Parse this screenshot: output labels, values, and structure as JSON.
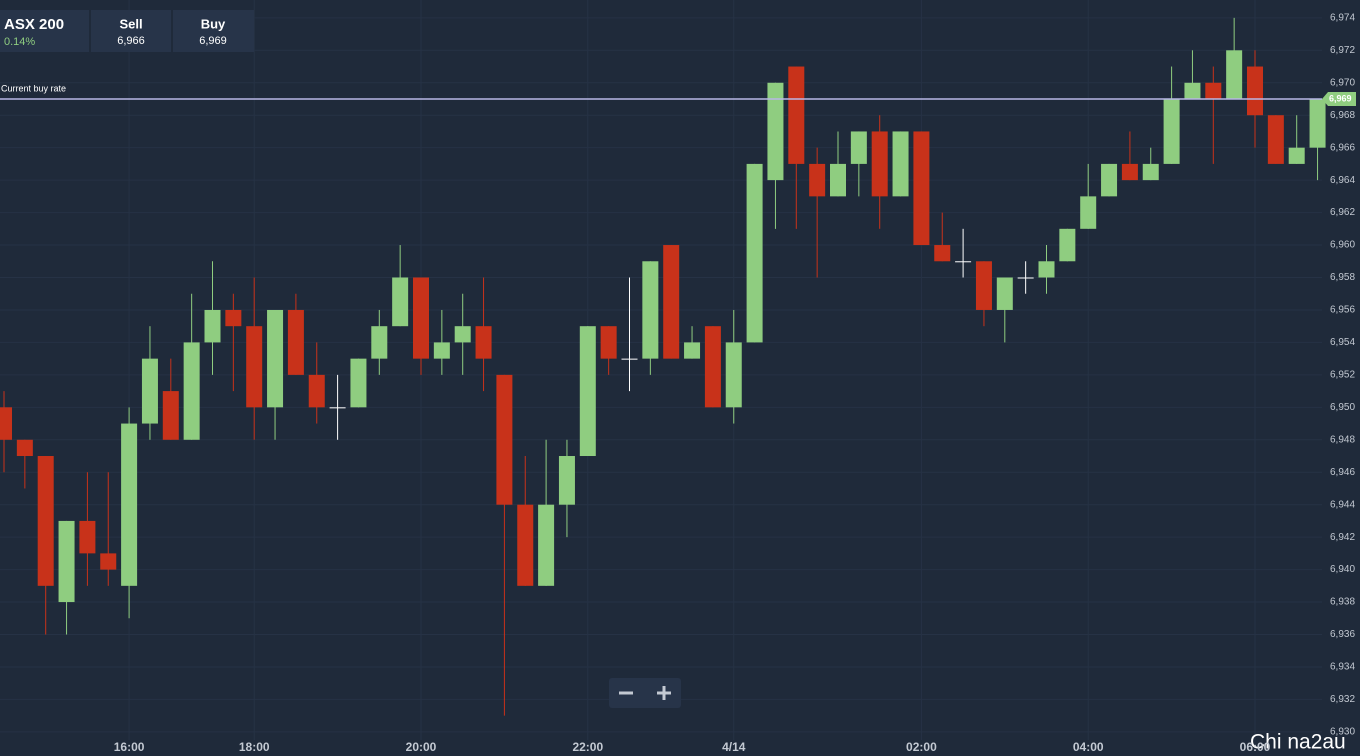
{
  "header": {
    "symbol": "ASX 200",
    "change": "0.14%",
    "sell_label": "Sell",
    "sell": "6,966",
    "buy_label": "Buy",
    "buy": "6,969"
  },
  "watermark": "Chi na2au",
  "chart_data": {
    "type": "candlestick",
    "categories": [
      null,
      null,
      null,
      null,
      null,
      null,
      "16:00",
      null,
      null,
      null,
      null,
      null,
      "18:00",
      null,
      null,
      null,
      null,
      null,
      null,
      null,
      "20:00",
      null,
      null,
      null,
      null,
      null,
      null,
      null,
      "22:00",
      null,
      null,
      null,
      null,
      null,
      null,
      "4/14",
      null,
      null,
      null,
      null,
      null,
      null,
      null,
      null,
      "02:00",
      null,
      null,
      null,
      null,
      null,
      null,
      null,
      "04:00",
      null,
      null,
      null,
      null,
      null,
      null,
      null,
      "06:00",
      null,
      null,
      null
    ],
    "open": [
      6950,
      6948,
      6947,
      6938,
      6943,
      6941,
      6939,
      6949,
      6951,
      6948,
      6954,
      6956,
      6955,
      6950,
      6956,
      6952,
      6950,
      6950,
      6953,
      6955,
      6958,
      6953,
      6954,
      6955,
      6952,
      6944,
      6939,
      6944,
      6947,
      6955,
      6953,
      6953,
      6960,
      6953,
      6955,
      6950,
      6954,
      6964,
      6971,
      6965,
      6963,
      6965,
      6967,
      6963,
      6967,
      6960,
      6959,
      6959,
      6956,
      6958,
      6958,
      6959,
      6961,
      6963,
      6965,
      6964,
      6965,
      6969,
      6970,
      6969,
      6971,
      6968,
      6965,
      6966
    ],
    "high": [
      6951,
      6948,
      6947,
      6943,
      6946,
      6946,
      6950,
      6955,
      6953,
      6957,
      6959,
      6957,
      6958,
      6956,
      6957,
      6954,
      6952,
      6953,
      6956,
      6960,
      6958,
      6956,
      6957,
      6958,
      6952,
      6947,
      6948,
      6948,
      6955,
      6955,
      6958,
      6959,
      6960,
      6955,
      6955,
      6956,
      6965,
      6970,
      6971,
      6966,
      6967,
      6967,
      6968,
      6967,
      6967,
      6962,
      6961,
      6959,
      6958,
      6959,
      6960,
      6961,
      6965,
      6965,
      6967,
      6966,
      6971,
      6972,
      6971,
      6974,
      6972,
      6968,
      6968,
      6969
    ],
    "low": [
      6946,
      6945,
      6936,
      6936,
      6939,
      6939,
      6937,
      6948,
      6948,
      6948,
      6952,
      6951,
      6948,
      6948,
      6952,
      6949,
      6948,
      6950,
      6952,
      6955,
      6952,
      6952,
      6952,
      6951,
      6931,
      6939,
      6939,
      6942,
      6947,
      6952,
      6951,
      6952,
      6953,
      6953,
      6950,
      6949,
      6954,
      6961,
      6961,
      6958,
      6963,
      6963,
      6961,
      6963,
      6960,
      6959,
      6958,
      6955,
      6954,
      6957,
      6957,
      6959,
      6961,
      6963,
      6964,
      6964,
      6965,
      6969,
      6965,
      6969,
      6966,
      6965,
      6965,
      6964
    ],
    "close": [
      6948,
      6947,
      6939,
      6943,
      6941,
      6940,
      6949,
      6953,
      6948,
      6954,
      6956,
      6955,
      6950,
      6956,
      6952,
      6950,
      6950,
      6953,
      6955,
      6958,
      6953,
      6954,
      6955,
      6953,
      6944,
      6939,
      6944,
      6947,
      6955,
      6953,
      6953,
      6959,
      6953,
      6954,
      6950,
      6954,
      6965,
      6970,
      6965,
      6963,
      6965,
      6967,
      6963,
      6967,
      6960,
      6959,
      6959,
      6956,
      6958,
      6958,
      6959,
      6961,
      6963,
      6965,
      6964,
      6965,
      6969,
      6970,
      6969,
      6972,
      6968,
      6965,
      6966,
      6969
    ],
    "up_color": "#8fcd80",
    "down_color": "#c8321a",
    "ylim": [
      6929.5,
      6975.1
    ],
    "yticks": [
      {
        "value": 6930,
        "label": "6,930"
      },
      {
        "value": 6932,
        "label": "6,932"
      },
      {
        "value": 6934,
        "label": "6,934"
      },
      {
        "value": 6936,
        "label": "6,936"
      },
      {
        "value": 6938,
        "label": "6,938"
      },
      {
        "value": 6940,
        "label": "6,940"
      },
      {
        "value": 6942,
        "label": "6,942"
      },
      {
        "value": 6944,
        "label": "6,944"
      },
      {
        "value": 6946,
        "label": "6,946"
      },
      {
        "value": 6948,
        "label": "6,948"
      },
      {
        "value": 6950,
        "label": "6,950"
      },
      {
        "value": 6952,
        "label": "6,952"
      },
      {
        "value": 6954,
        "label": "6,954"
      },
      {
        "value": 6956,
        "label": "6,956"
      },
      {
        "value": 6958,
        "label": "6,958"
      },
      {
        "value": 6960,
        "label": "6,960"
      },
      {
        "value": 6962,
        "label": "6,962"
      },
      {
        "value": 6964,
        "label": "6,964"
      },
      {
        "value": 6966,
        "label": "6,966"
      },
      {
        "value": 6968,
        "label": "6,968"
      },
      {
        "value": 6970,
        "label": "6,970"
      },
      {
        "value": 6972,
        "label": "6,972"
      },
      {
        "value": 6974,
        "label": "6,974"
      }
    ],
    "grid": true,
    "current_rate": {
      "label": "Current buy rate",
      "value": 6969,
      "value_label": "6,969",
      "color": "#b9b7e6",
      "tag_color": "#8fcd80"
    }
  }
}
